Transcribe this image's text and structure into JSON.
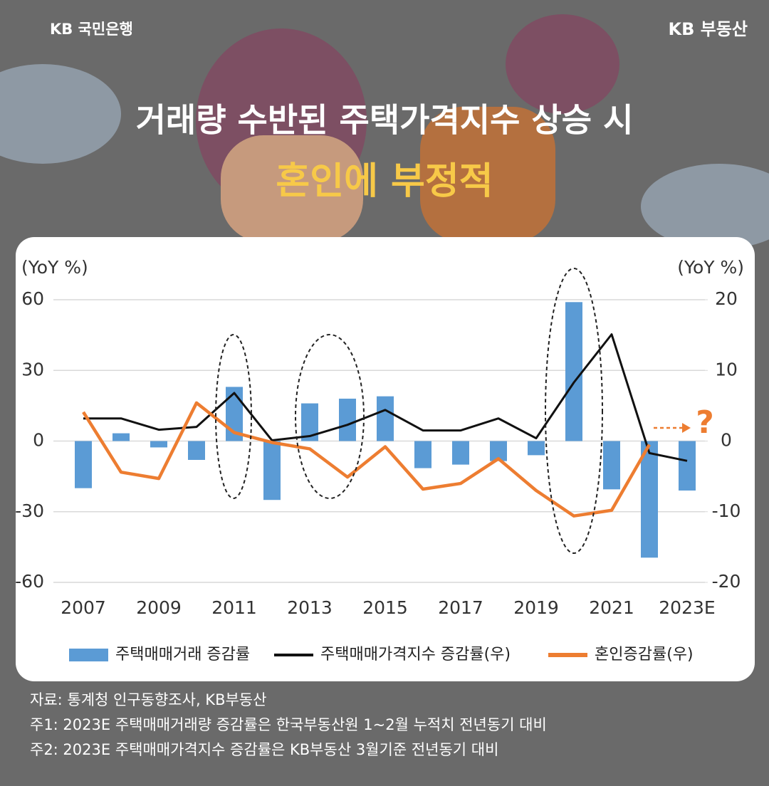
{
  "header": {
    "left": "KB 국민은행",
    "right": "KB 부동산"
  },
  "title": {
    "line1": "거래량 수반된 주택가격지수 상승 시",
    "line2": "혼인에 부정적"
  },
  "chart_data": {
    "type": "combo",
    "y_label": "(YoY %)",
    "y2_label": "(YoY %)",
    "categories": [
      "2007",
      null,
      "2009",
      null,
      "2011",
      null,
      "2013",
      null,
      "2015",
      null,
      "2017",
      null,
      "2019",
      null,
      "2021",
      null,
      "2023E"
    ],
    "series": [
      {
        "name": "주택매매거래 증감률",
        "type": "bar",
        "color": "#5b9bd5",
        "values": [
          -20,
          3.3,
          -2.7,
          -8,
          23,
          -25,
          16,
          18,
          19,
          -11.5,
          -10,
          -8.5,
          -6,
          59,
          -20.5,
          -49.5,
          -21
        ]
      },
      {
        "name": "주택매매가격지수 증감률(우)",
        "type": "line",
        "axis": "y2",
        "color": "#111111",
        "values": [
          3.2,
          3.2,
          1.6,
          2.0,
          6.8,
          0.1,
          0.7,
          2.3,
          4.4,
          1.5,
          1.5,
          3.2,
          0.4,
          8.3,
          15.1,
          -1.7,
          -2.8
        ]
      },
      {
        "name": "혼인증감률(우)",
        "type": "line",
        "axis": "y2",
        "color": "#ed7d31",
        "values": [
          4.1,
          -4.4,
          -5.3,
          5.4,
          1.2,
          -0.2,
          -1.1,
          -5.1,
          -0.8,
          -6.8,
          -6.0,
          -2.5,
          -7.0,
          -10.6,
          -9.8,
          -0.5,
          null
        ]
      }
    ],
    "ylim": [
      -60,
      60
    ],
    "yticks": [
      -60,
      -30,
      0,
      30,
      60
    ],
    "y2lim": [
      -20,
      20
    ],
    "y2ticks": [
      -20,
      -10,
      0,
      10,
      20
    ],
    "grid": true,
    "legend": "bottom",
    "annotation": "?"
  },
  "notes": [
    "자료: 통계청 인구동향조사, KB부동산",
    "주1: 2023E 주택매매거래량 증감률은 한국부동산원 1~2월 누적치 전년동기 대비",
    "주2: 2023E 주택매매가격지수 증감률은 KB부동산 3월기준 전년동기 대비"
  ]
}
